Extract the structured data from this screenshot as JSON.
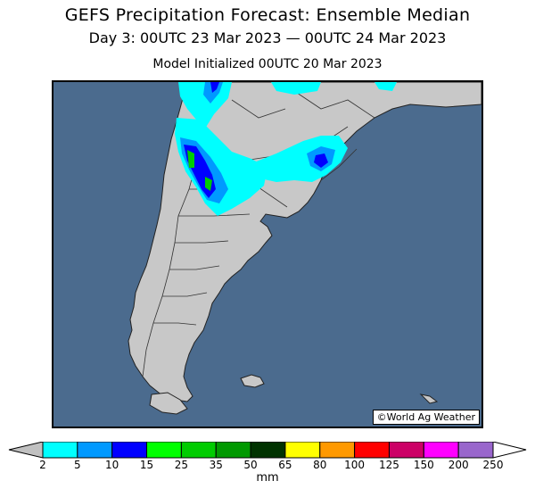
{
  "header": {
    "title": "GEFS Precipitation Forecast: Ensemble Median",
    "valid_period": "Day 3: 00UTC 23 Mar 2023 — 00UTC 24 Mar 2023",
    "initialized": "Model Initialized 00UTC 20 Mar 2023"
  },
  "map": {
    "region": "Southern South America",
    "credit": "©World Ag Weather",
    "colors": {
      "ocean": "#4b6b8e",
      "land": "#c8c8c8",
      "border": "#222222"
    }
  },
  "legend": {
    "unit": "mm",
    "ticks": [
      "2",
      "5",
      "10",
      "15",
      "25",
      "35",
      "50",
      "65",
      "80",
      "100",
      "125",
      "150",
      "200",
      "250"
    ],
    "colors": [
      "#00ffff",
      "#0099ff",
      "#0000ff",
      "#00ff00",
      "#00cc00",
      "#009900",
      "#003300",
      "#ffff00",
      "#ff9900",
      "#ff0000",
      "#cc0066",
      "#ff00ff",
      "#9966cc"
    ],
    "under_color": "#c0c0c0",
    "over_color": "#ffffff"
  }
}
